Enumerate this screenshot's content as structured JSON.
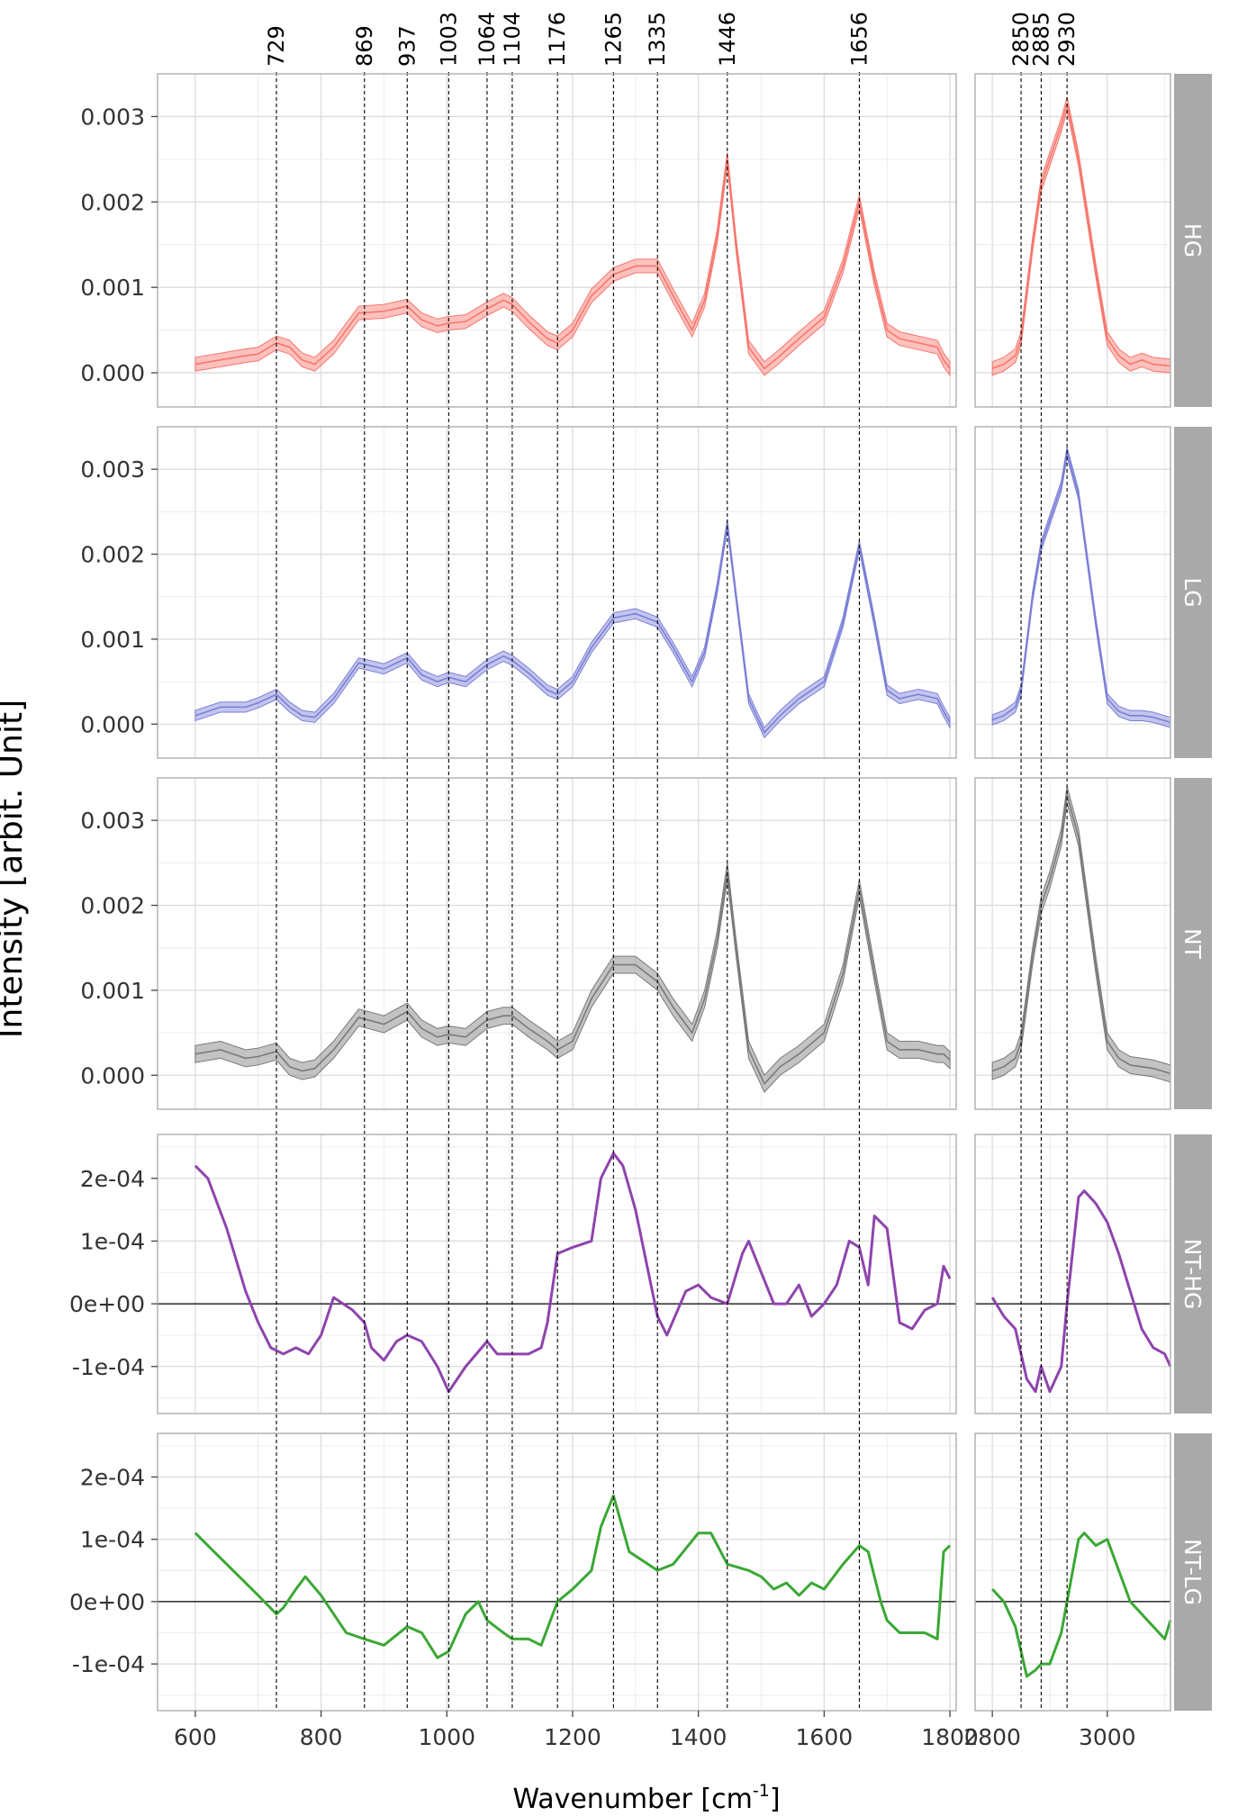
{
  "chart_data": {
    "type": "line",
    "xlabel": "Wavenumber [cm",
    "xlabel_sup": "-1",
    "xlabel_close": "]",
    "ylabel": "Intensity [arbit. Unit]",
    "peak_labels": [
      "729",
      "869",
      "937",
      "1003",
      "1064",
      "1104",
      "1176",
      "1265",
      "1335",
      "1446",
      "1656",
      "2850",
      "2885",
      "2930"
    ],
    "left_xlim": [
      540,
      1810
    ],
    "right_xlim": [
      2770,
      3110
    ],
    "left_ticks": [
      600,
      800,
      1000,
      1200,
      1400,
      1600,
      1800
    ],
    "left_tick_labels": [
      "600",
      "800",
      "1000",
      "1200",
      "1400",
      "1600",
      "1800"
    ],
    "right_ticks": [
      2800,
      3000
    ],
    "right_tick_labels": [
      "2800",
      "3000"
    ],
    "grid": true,
    "colors": {
      "HG": "#f8766d",
      "LG": "#7b7fd6",
      "NT": "#7a7a7a",
      "NT-HG": "#8e44ad",
      "NT-LG": "#3aa835",
      "strip": "#a9a9a9"
    },
    "panels": [
      {
        "strip": "HG",
        "kind": "mean_band",
        "color": "#f8766d",
        "ylim": [
          -0.0004,
          0.0035
        ],
        "yticks": [
          0,
          0.001,
          0.002,
          0.003
        ],
        "ytick_labels": [
          "0.000",
          "0.001",
          "0.002",
          "0.003"
        ],
        "band": 8e-05,
        "left_x": [
          600,
          640,
          680,
          700,
          729,
          750,
          770,
          790,
          820,
          860,
          900,
          937,
          960,
          985,
          1003,
          1030,
          1064,
          1090,
          1104,
          1130,
          1160,
          1176,
          1200,
          1230,
          1265,
          1300,
          1335,
          1360,
          1390,
          1410,
          1430,
          1446,
          1460,
          1480,
          1505,
          1530,
          1560,
          1600,
          1630,
          1656,
          1680,
          1700,
          1720,
          1750,
          1780,
          1790,
          1800
        ],
        "left_y": [
          0.0001,
          0.00015,
          0.0002,
          0.00022,
          0.00035,
          0.0003,
          0.00015,
          0.0001,
          0.0003,
          0.0007,
          0.00072,
          0.00078,
          0.00062,
          0.00055,
          0.00058,
          0.0006,
          0.00075,
          0.00085,
          0.0008,
          0.0006,
          0.0004,
          0.00035,
          0.0005,
          0.0009,
          0.00115,
          0.00125,
          0.00125,
          0.0009,
          0.0005,
          0.00085,
          0.0016,
          0.0025,
          0.0015,
          0.0003,
          5e-05,
          0.0002,
          0.0004,
          0.00065,
          0.00125,
          0.002,
          0.0011,
          0.0005,
          0.0004,
          0.00035,
          0.0003,
          0.00015,
          5e-05
        ],
        "right_x": [
          2800,
          2820,
          2840,
          2850,
          2870,
          2885,
          2900,
          2920,
          2930,
          2950,
          2980,
          3000,
          3020,
          3040,
          3060,
          3080,
          3110
        ],
        "right_y": [
          5e-05,
          0.0001,
          0.0002,
          0.0004,
          0.0015,
          0.0022,
          0.0025,
          0.0029,
          0.00315,
          0.0025,
          0.0012,
          0.0004,
          0.0002,
          0.0001,
          0.00015,
          0.0001,
          8e-05
        ]
      },
      {
        "strip": "LG",
        "kind": "mean_band",
        "color": "#7b7fd6",
        "ylim": [
          -0.0004,
          0.0035
        ],
        "yticks": [
          0,
          0.001,
          0.002,
          0.003
        ],
        "ytick_labels": [
          "0.000",
          "0.001",
          "0.002",
          "0.003"
        ],
        "band": 6e-05,
        "left_x": [
          600,
          640,
          680,
          700,
          729,
          750,
          770,
          790,
          820,
          860,
          900,
          937,
          960,
          985,
          1003,
          1030,
          1064,
          1090,
          1104,
          1130,
          1160,
          1176,
          1200,
          1230,
          1265,
          1300,
          1335,
          1360,
          1390,
          1410,
          1430,
          1446,
          1460,
          1480,
          1505,
          1530,
          1560,
          1600,
          1630,
          1656,
          1680,
          1700,
          1720,
          1750,
          1780,
          1790,
          1800
        ],
        "left_y": [
          0.0001,
          0.0002,
          0.0002,
          0.00025,
          0.00035,
          0.0002,
          0.0001,
          8e-05,
          0.0003,
          0.00072,
          0.00065,
          0.00078,
          0.00058,
          0.0005,
          0.00055,
          0.0005,
          0.0007,
          0.0008,
          0.00075,
          0.0006,
          0.0004,
          0.00035,
          0.0005,
          0.0009,
          0.00125,
          0.0013,
          0.0012,
          0.0009,
          0.0005,
          0.00085,
          0.0016,
          0.00235,
          0.0015,
          0.0003,
          -0.0001,
          0.0001,
          0.0003,
          0.0005,
          0.0012,
          0.0021,
          0.0012,
          0.0004,
          0.0003,
          0.00035,
          0.0003,
          0.00015,
          2e-05
        ],
        "right_x": [
          2800,
          2820,
          2840,
          2850,
          2870,
          2885,
          2900,
          2920,
          2930,
          2950,
          2980,
          3000,
          3020,
          3040,
          3060,
          3080,
          3110
        ],
        "right_y": [
          5e-05,
          0.0001,
          0.0002,
          0.0004,
          0.0015,
          0.0021,
          0.0024,
          0.0028,
          0.0032,
          0.0027,
          0.0012,
          0.0003,
          0.00015,
          0.0001,
          0.0001,
          8e-05,
          2e-05
        ]
      },
      {
        "strip": "NT",
        "kind": "mean_band",
        "color": "#7a7a7a",
        "ylim": [
          -0.0004,
          0.0035
        ],
        "yticks": [
          0,
          0.001,
          0.002,
          0.003
        ],
        "ytick_labels": [
          "0.000",
          "0.001",
          "0.002",
          "0.003"
        ],
        "band": 0.0001,
        "left_x": [
          600,
          640,
          680,
          700,
          729,
          750,
          770,
          790,
          820,
          860,
          900,
          937,
          960,
          985,
          1003,
          1030,
          1064,
          1090,
          1104,
          1130,
          1160,
          1176,
          1200,
          1230,
          1265,
          1300,
          1335,
          1360,
          1390,
          1410,
          1430,
          1446,
          1460,
          1480,
          1505,
          1530,
          1560,
          1600,
          1630,
          1656,
          1680,
          1700,
          1720,
          1750,
          1780,
          1790,
          1800
        ],
        "left_y": [
          0.00025,
          0.0003,
          0.0002,
          0.00022,
          0.00028,
          0.0001,
          5e-05,
          8e-05,
          0.0003,
          0.00068,
          0.0006,
          0.00075,
          0.00055,
          0.00045,
          0.00048,
          0.00045,
          0.00065,
          0.0007,
          0.0007,
          0.00055,
          0.0004,
          0.0003,
          0.0004,
          0.0009,
          0.0013,
          0.0013,
          0.0011,
          0.0008,
          0.0005,
          0.0009,
          0.0016,
          0.0024,
          0.0015,
          0.0003,
          -0.0001,
          0.0001,
          0.00025,
          0.0005,
          0.0012,
          0.0022,
          0.0012,
          0.0004,
          0.0003,
          0.0003,
          0.00025,
          0.00025,
          0.00018
        ],
        "right_x": [
          2800,
          2820,
          2840,
          2850,
          2870,
          2885,
          2900,
          2920,
          2930,
          2950,
          2980,
          3000,
          3020,
          3040,
          3060,
          3080,
          3110
        ],
        "right_y": [
          5e-05,
          0.0001,
          0.0002,
          0.0004,
          0.0014,
          0.002,
          0.0023,
          0.0028,
          0.0033,
          0.0028,
          0.0013,
          0.0004,
          0.0002,
          0.00012,
          0.0001,
          8e-05,
          2e-05
        ]
      },
      {
        "strip": "NT-HG",
        "kind": "line",
        "color": "#8e44ad",
        "ylim": [
          -0.000175,
          0.00027
        ],
        "yticks": [
          -0.0001,
          0,
          0.0001,
          0.0002
        ],
        "ytick_labels": [
          "-1e-04",
          "0e+00",
          "1e-04",
          "2e-04"
        ],
        "zero_line": true,
        "left_x": [
          600,
          620,
          650,
          680,
          700,
          720,
          740,
          760,
          780,
          800,
          820,
          850,
          869,
          880,
          900,
          920,
          937,
          960,
          985,
          1003,
          1030,
          1064,
          1080,
          1104,
          1130,
          1150,
          1160,
          1176,
          1200,
          1230,
          1245,
          1265,
          1280,
          1300,
          1335,
          1350,
          1380,
          1400,
          1420,
          1446,
          1470,
          1480,
          1500,
          1520,
          1540,
          1560,
          1580,
          1600,
          1620,
          1640,
          1656,
          1670,
          1680,
          1700,
          1720,
          1740,
          1760,
          1780,
          1790,
          1800
        ],
        "left_y": [
          0.00022,
          0.0002,
          0.00012,
          2e-05,
          -3e-05,
          -7e-05,
          -8e-05,
          -7e-05,
          -8e-05,
          -5e-05,
          1e-05,
          -1e-05,
          -3e-05,
          -7e-05,
          -9e-05,
          -6e-05,
          -5e-05,
          -6e-05,
          -0.0001,
          -0.00014,
          -0.0001,
          -6e-05,
          -8e-05,
          -8e-05,
          -8e-05,
          -7e-05,
          -3e-05,
          8e-05,
          9e-05,
          0.0001,
          0.0002,
          0.00024,
          0.00022,
          0.00015,
          -2e-05,
          -5e-05,
          2e-05,
          3e-05,
          1e-05,
          0.0,
          8e-05,
          0.0001,
          5e-05,
          0.0,
          0.0,
          3e-05,
          -2e-05,
          0.0,
          3e-05,
          0.0001,
          9e-05,
          3e-05,
          0.00014,
          0.00012,
          -3e-05,
          -4e-05,
          -1e-05,
          0.0,
          6e-05,
          4e-05
        ],
        "right_x": [
          2800,
          2820,
          2840,
          2850,
          2860,
          2875,
          2885,
          2900,
          2920,
          2930,
          2950,
          2960,
          2980,
          3000,
          3020,
          3040,
          3060,
          3080,
          3100,
          3110
        ],
        "right_y": [
          1e-05,
          -2e-05,
          -4e-05,
          -8e-05,
          -0.00012,
          -0.00014,
          -0.0001,
          -0.00014,
          -0.0001,
          0.0,
          0.00017,
          0.00018,
          0.00016,
          0.00013,
          8e-05,
          2e-05,
          -4e-05,
          -7e-05,
          -8e-05,
          -0.0001
        ]
      },
      {
        "strip": "NT-LG",
        "kind": "line",
        "color": "#3aa835",
        "ylim": [
          -0.000175,
          0.00027
        ],
        "yticks": [
          -0.0001,
          0,
          0.0001,
          0.0002
        ],
        "ytick_labels": [
          "-1e-04",
          "0e+00",
          "1e-04",
          "2e-04"
        ],
        "zero_line": true,
        "left_x": [
          600,
          630,
          660,
          700,
          729,
          740,
          760,
          775,
          800,
          840,
          869,
          900,
          937,
          960,
          985,
          1003,
          1030,
          1050,
          1064,
          1090,
          1104,
          1130,
          1150,
          1176,
          1200,
          1230,
          1245,
          1265,
          1290,
          1335,
          1360,
          1400,
          1420,
          1446,
          1480,
          1500,
          1520,
          1540,
          1560,
          1580,
          1600,
          1630,
          1656,
          1670,
          1690,
          1700,
          1720,
          1740,
          1760,
          1780,
          1790,
          1800
        ],
        "left_y": [
          0.00011,
          8e-05,
          5e-05,
          1e-05,
          -2e-05,
          -1e-05,
          2e-05,
          4e-05,
          1e-05,
          -5e-05,
          -6e-05,
          -7e-05,
          -4e-05,
          -5e-05,
          -9e-05,
          -8e-05,
          -2e-05,
          0.0,
          -3e-05,
          -5e-05,
          -6e-05,
          -6e-05,
          -7e-05,
          0.0,
          2e-05,
          5e-05,
          0.00012,
          0.00017,
          8e-05,
          5e-05,
          6e-05,
          0.00011,
          0.00011,
          6e-05,
          5e-05,
          4e-05,
          2e-05,
          3e-05,
          1e-05,
          3e-05,
          2e-05,
          6e-05,
          9e-05,
          8e-05,
          0.0,
          -3e-05,
          -5e-05,
          -5e-05,
          -5e-05,
          -6e-05,
          8e-05,
          9e-05
        ],
        "right_x": [
          2800,
          2820,
          2840,
          2850,
          2860,
          2875,
          2885,
          2900,
          2920,
          2930,
          2950,
          2960,
          2980,
          3000,
          3020,
          3040,
          3060,
          3080,
          3100,
          3110
        ],
        "right_y": [
          2e-05,
          0.0,
          -4e-05,
          -8e-05,
          -0.00012,
          -0.00011,
          -0.0001,
          -0.0001,
          -5e-05,
          0.0,
          0.0001,
          0.00011,
          9e-05,
          0.0001,
          5e-05,
          0.0,
          -2e-05,
          -4e-05,
          -6e-05,
          -3e-05
        ]
      }
    ]
  }
}
